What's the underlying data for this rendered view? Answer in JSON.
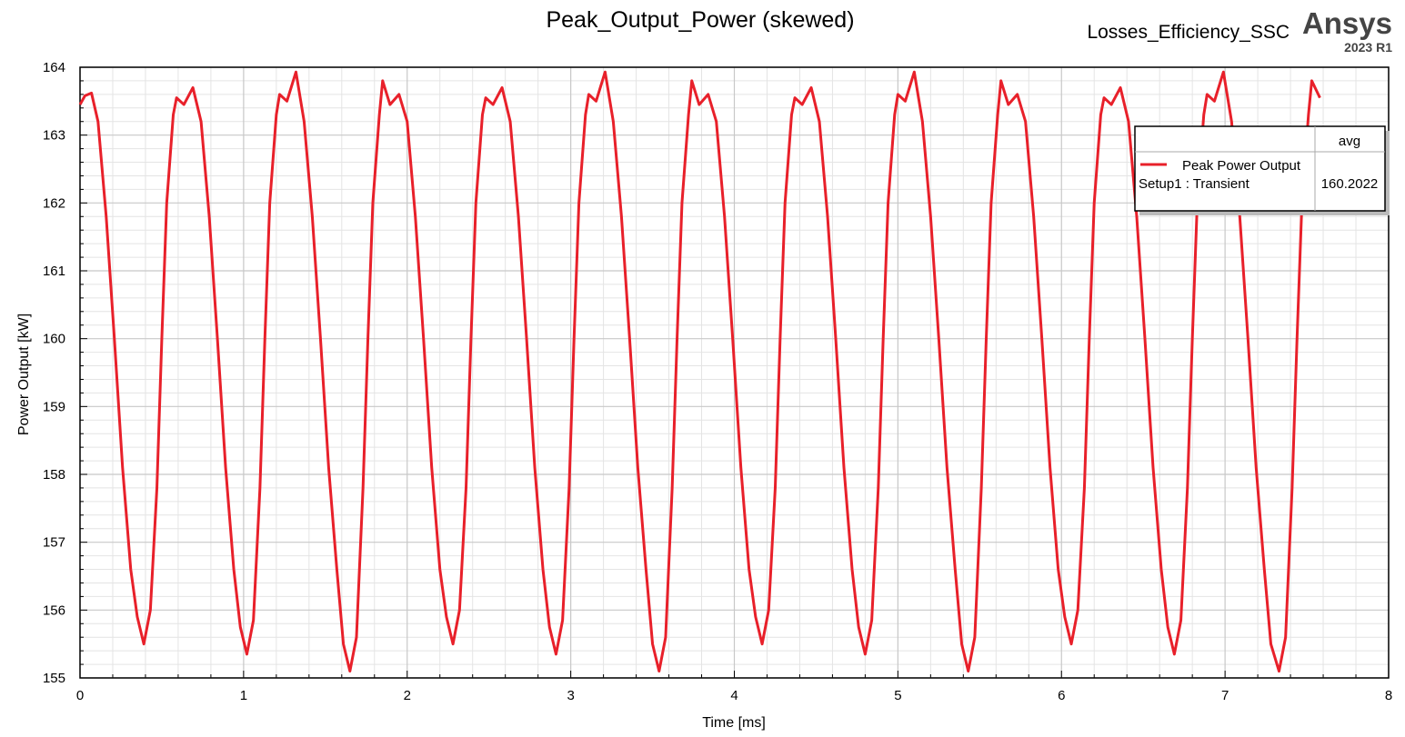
{
  "chart_data": {
    "type": "line",
    "title": "Peak_Output_Power (skewed)",
    "subtitle": "Losses_Efficiency_SSC",
    "brand": "Ansys",
    "version": "2023 R1",
    "x_label": "Time [ms]",
    "y_label": "Power Output [kW]",
    "xlim": [
      0,
      8
    ],
    "xticks": [
      0,
      1,
      2,
      3,
      4,
      5,
      6,
      7,
      8
    ],
    "ylim": [
      155,
      164
    ],
    "yticks": [
      155,
      156,
      157,
      158,
      159,
      160,
      161,
      162,
      163,
      164
    ],
    "grid": true,
    "minor_divisions": 5,
    "legend_position": "upper right",
    "legend": {
      "header": "avg",
      "context": "Setup1 : Transient",
      "avg": 160.2022
    },
    "x": [
      0,
      0.03,
      0.07,
      0.11,
      0.16,
      0.21,
      0.26,
      0.31,
      0.35,
      0.39,
      0.43,
      0.47,
      0.5,
      0.53,
      0.57,
      0.59,
      0.635,
      0.69,
      0.74,
      0.79,
      0.84,
      0.89,
      0.94,
      0.98,
      1.02,
      1.06,
      1.1,
      1.13,
      1.16,
      1.2,
      1.22,
      1.265,
      1.32,
      1.37,
      1.42,
      1.47,
      1.52,
      1.57,
      1.61,
      1.65,
      1.69,
      1.73,
      1.76,
      1.79,
      1.83,
      1.85,
      1.895,
      1.95,
      2.0,
      2.05,
      2.1,
      2.15,
      2.2,
      2.24,
      2.28,
      2.32,
      2.36,
      2.39,
      2.42,
      2.46,
      2.48,
      2.525,
      2.58,
      2.63,
      2.68,
      2.73,
      2.78,
      2.83,
      2.87,
      2.91,
      2.95,
      2.99,
      3.02,
      3.05,
      3.09,
      3.11,
      3.155,
      3.21,
      3.26,
      3.31,
      3.36,
      3.41,
      3.46,
      3.5,
      3.54,
      3.58,
      3.62,
      3.65,
      3.68,
      3.72,
      3.74,
      3.785,
      3.84,
      3.89,
      3.94,
      3.99,
      4.04,
      4.09,
      4.13,
      4.17,
      4.21,
      4.25,
      4.28,
      4.31,
      4.35,
      4.37,
      4.415,
      4.47,
      4.52,
      4.57,
      4.62,
      4.67,
      4.72,
      4.76,
      4.8,
      4.84,
      4.88,
      4.91,
      4.94,
      4.98,
      5.0,
      5.045,
      5.1,
      5.15,
      5.2,
      5.25,
      5.3,
      5.35,
      5.39,
      5.43,
      5.47,
      5.51,
      5.54,
      5.57,
      5.61,
      5.63,
      5.675,
      5.73,
      5.78,
      5.83,
      5.88,
      5.93,
      5.98,
      6.02,
      6.06,
      6.1,
      6.14,
      6.17,
      6.2,
      6.24,
      6.26,
      6.305,
      6.36,
      6.41,
      6.46,
      6.51,
      6.56,
      6.61,
      6.65,
      6.69,
      6.73,
      6.77,
      6.8,
      6.83,
      6.87,
      6.89,
      6.935,
      6.99,
      7.04,
      7.09,
      7.14,
      7.19,
      7.24,
      7.28,
      7.33,
      7.37,
      7.41,
      7.44,
      7.47,
      7.51,
      7.53,
      7.58
    ],
    "series": [
      {
        "name": "Peak Power Output",
        "color": "#e8202a",
        "values": [
          163.45,
          163.58,
          163.62,
          163.2,
          161.8,
          160,
          158.1,
          156.6,
          155.9,
          155.5,
          156.0,
          157.8,
          160,
          162,
          163.3,
          163.55,
          163.45,
          163.7,
          163.2,
          161.8,
          160,
          158.1,
          156.6,
          155.75,
          155.35,
          155.85,
          157.8,
          160,
          162,
          163.3,
          163.6,
          163.5,
          163.93,
          163.2,
          161.8,
          160,
          158.1,
          156.6,
          155.5,
          155.1,
          155.6,
          157.8,
          160,
          162,
          163.3,
          163.8,
          163.45,
          163.6,
          163.2,
          161.8,
          160,
          158.1,
          156.6,
          155.9,
          155.5,
          156.0,
          157.8,
          160,
          162,
          163.3,
          163.55,
          163.45,
          163.7,
          163.2,
          161.8,
          160,
          158.1,
          156.6,
          155.75,
          155.35,
          155.85,
          157.8,
          160,
          162,
          163.3,
          163.6,
          163.5,
          163.93,
          163.2,
          161.8,
          160,
          158.1,
          156.6,
          155.5,
          155.1,
          155.6,
          157.8,
          160,
          162,
          163.3,
          163.8,
          163.45,
          163.6,
          163.2,
          161.8,
          160,
          158.1,
          156.6,
          155.9,
          155.5,
          156.0,
          157.8,
          160,
          162,
          163.3,
          163.55,
          163.45,
          163.7,
          163.2,
          161.8,
          160,
          158.1,
          156.6,
          155.75,
          155.35,
          155.85,
          157.8,
          160,
          162,
          163.3,
          163.6,
          163.5,
          163.93,
          163.2,
          161.8,
          160,
          158.1,
          156.6,
          155.5,
          155.1,
          155.6,
          157.8,
          160,
          162,
          163.3,
          163.8,
          163.45,
          163.6,
          163.2,
          161.8,
          160,
          158.1,
          156.6,
          155.9,
          155.5,
          156.0,
          157.8,
          160,
          162,
          163.3,
          163.55,
          163.45,
          163.7,
          163.2,
          161.8,
          160,
          158.1,
          156.6,
          155.75,
          155.35,
          155.85,
          157.8,
          160,
          162,
          163.3,
          163.6,
          163.5,
          163.93,
          163.2,
          161.8,
          160,
          158.1,
          156.6,
          155.5,
          155.1,
          155.6,
          157.8,
          160,
          162,
          163.3,
          163.8,
          163.55
        ]
      }
    ]
  }
}
